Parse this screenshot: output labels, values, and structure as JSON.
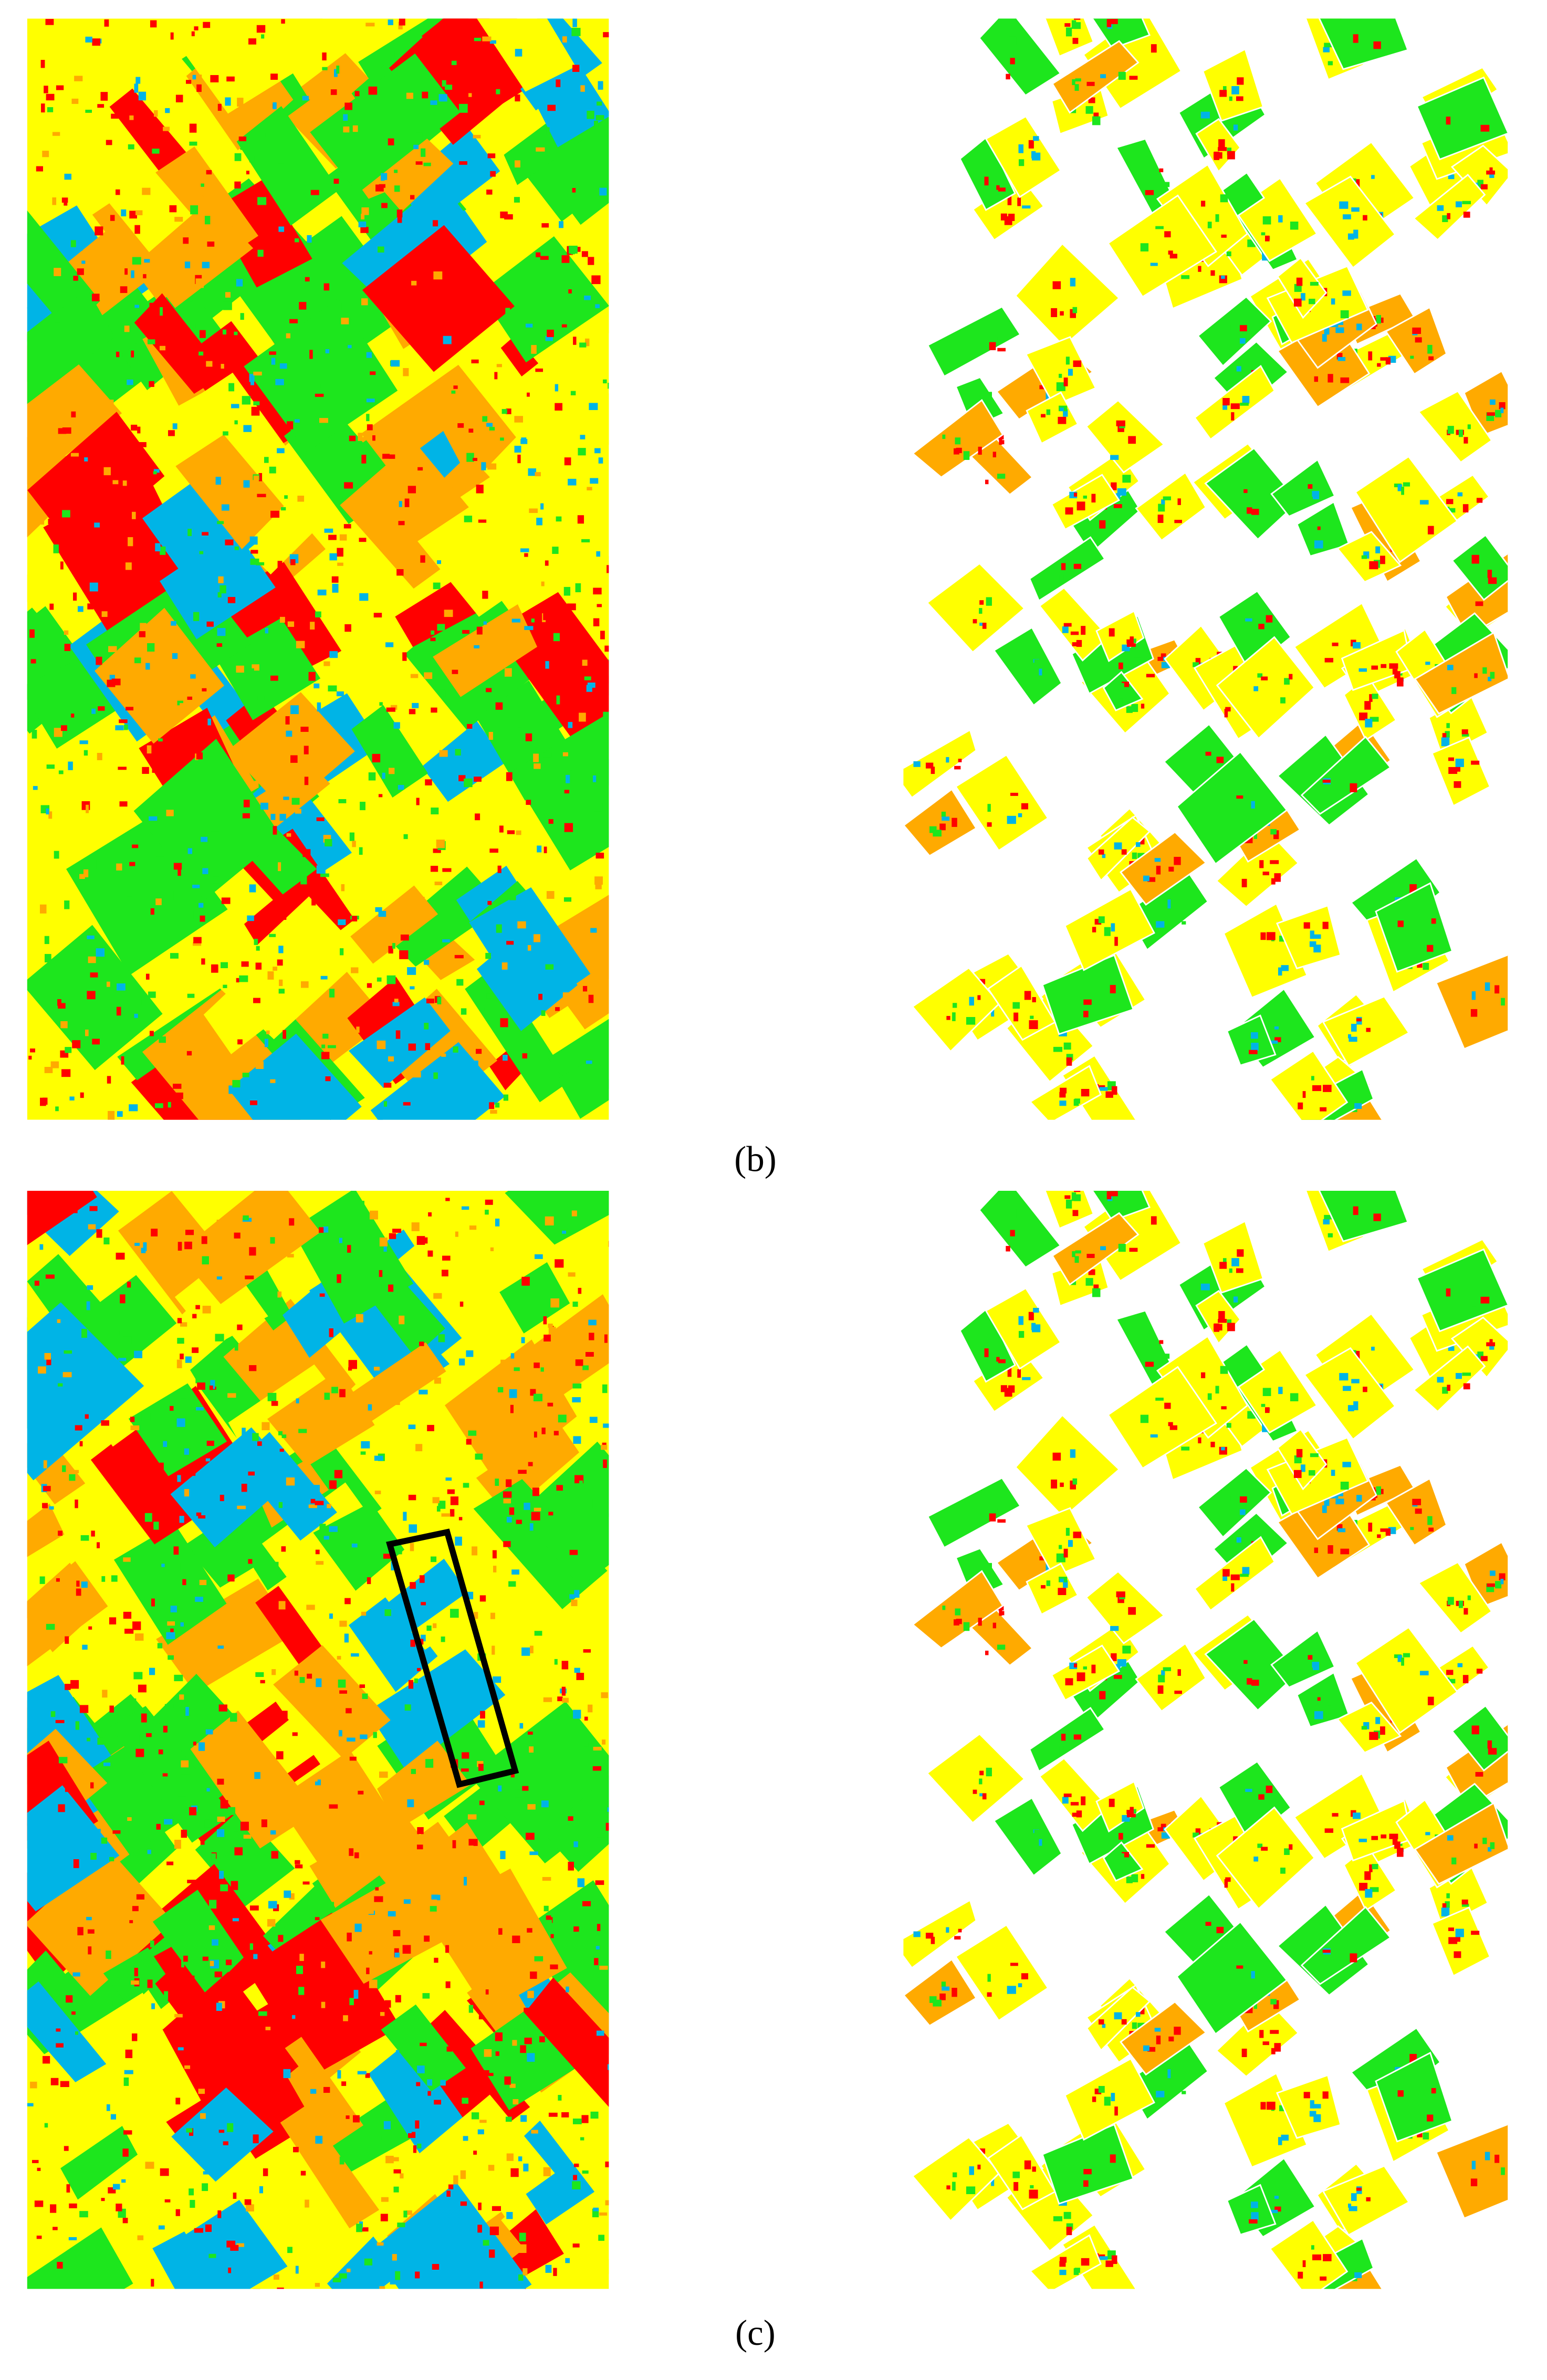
{
  "panels": [
    {
      "caption": "(b)"
    },
    {
      "caption": "(c)"
    }
  ]
}
